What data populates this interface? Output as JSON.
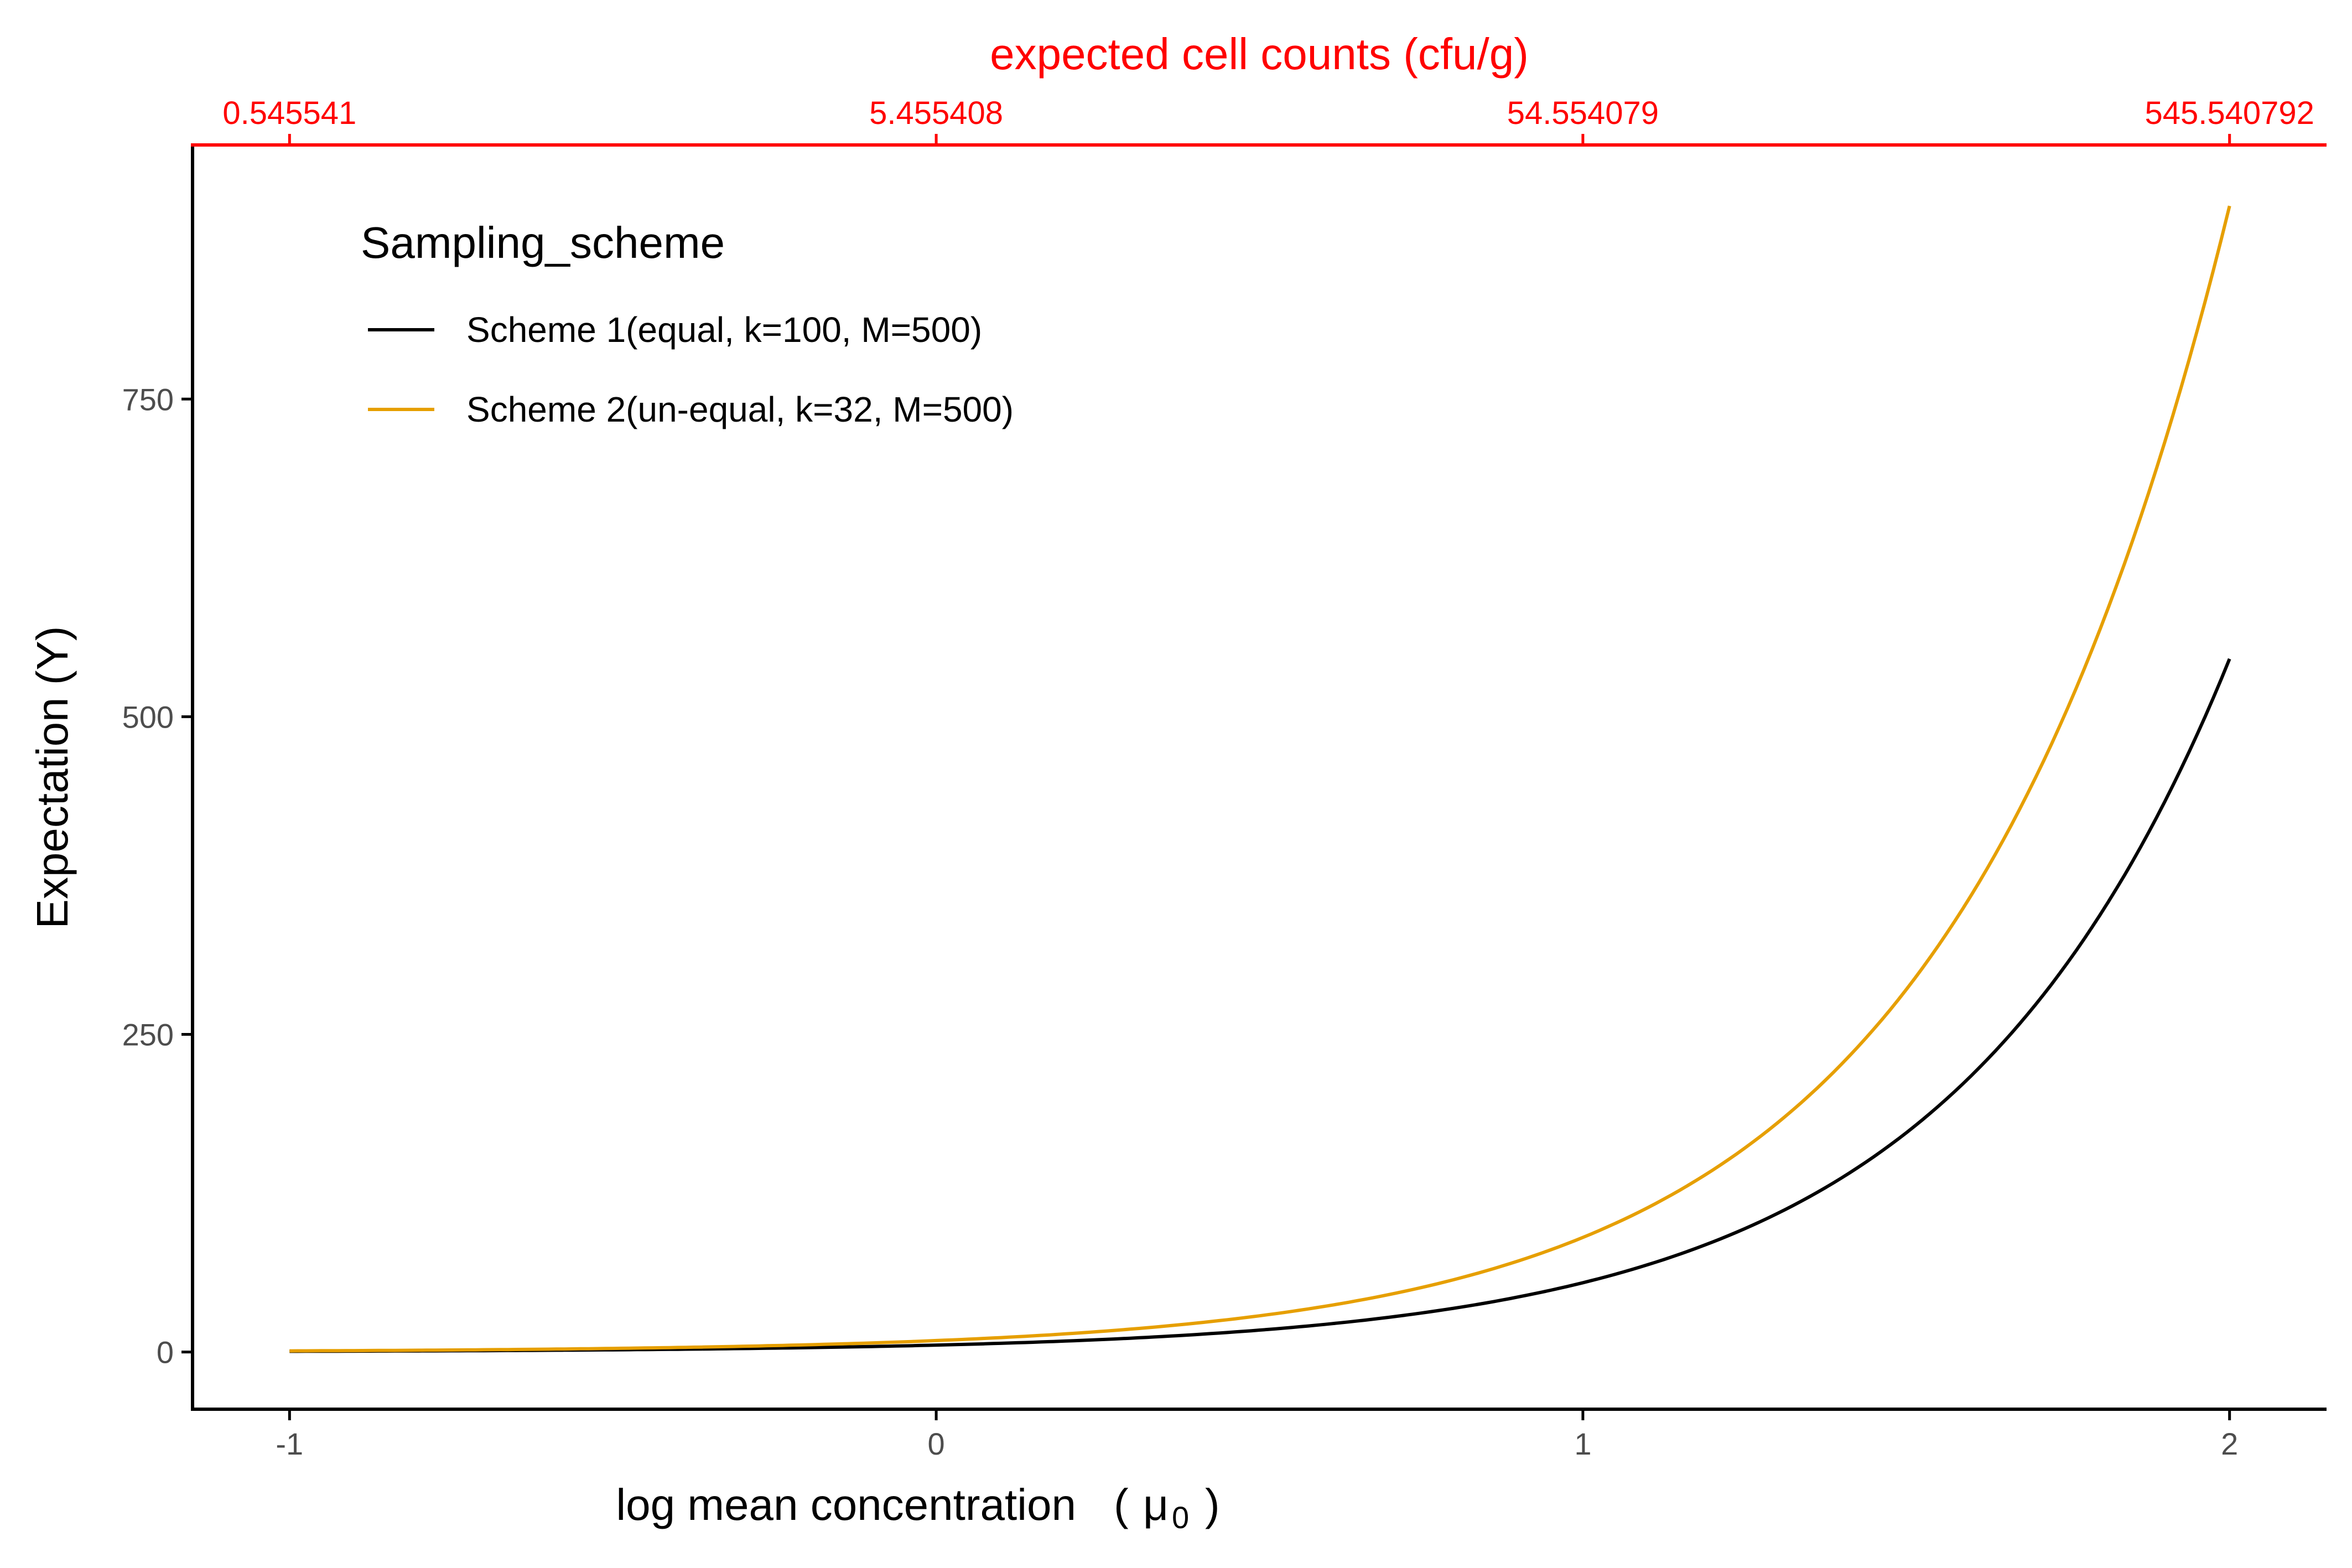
{
  "chart_data": {
    "type": "line",
    "xlabel": "log mean concentration",
    "xlabel_symbol": "μ",
    "xlabel_subscript": "0",
    "ylabel": "Expectation (Y)",
    "top_axis_title": "expected cell counts (cfu/g)",
    "x_ticks": [
      "-1",
      "0",
      "1",
      "2"
    ],
    "y_ticks": [
      "0",
      "250",
      "500",
      "750"
    ],
    "top_ticks": [
      "0.545541",
      "5.455408",
      "54.554079",
      "545.540792"
    ],
    "xlim": [
      -1.15,
      2.15
    ],
    "ylim": [
      -45,
      950
    ],
    "grid": false,
    "legend_position": "top-left",
    "legend_title": "Sampling_scheme",
    "colors": {
      "top_axis": "#ff0000",
      "axis": "#000000"
    },
    "x": [
      -1.0,
      -0.75,
      -0.5,
      -0.25,
      0.0,
      0.25,
      0.5,
      0.75,
      1.0,
      1.25,
      1.5,
      1.75,
      2.0
    ],
    "series": [
      {
        "name": "Scheme 1(equal, k=100, M=500)",
        "color": "#000000",
        "values": [
          0.55,
          0.97,
          1.73,
          3.07,
          5.46,
          9.7,
          17.25,
          30.68,
          54.55,
          97.01,
          172.52,
          306.78,
          545.54
        ]
      },
      {
        "name": "Scheme 2(un-equal, k=32, M=500)",
        "color": "#e69f00",
        "values": [
          0.9,
          1.6,
          2.85,
          5.07,
          9.02,
          16.04,
          28.52,
          50.72,
          90.2,
          160.4,
          285.24,
          507.24,
          902.0
        ]
      }
    ]
  }
}
